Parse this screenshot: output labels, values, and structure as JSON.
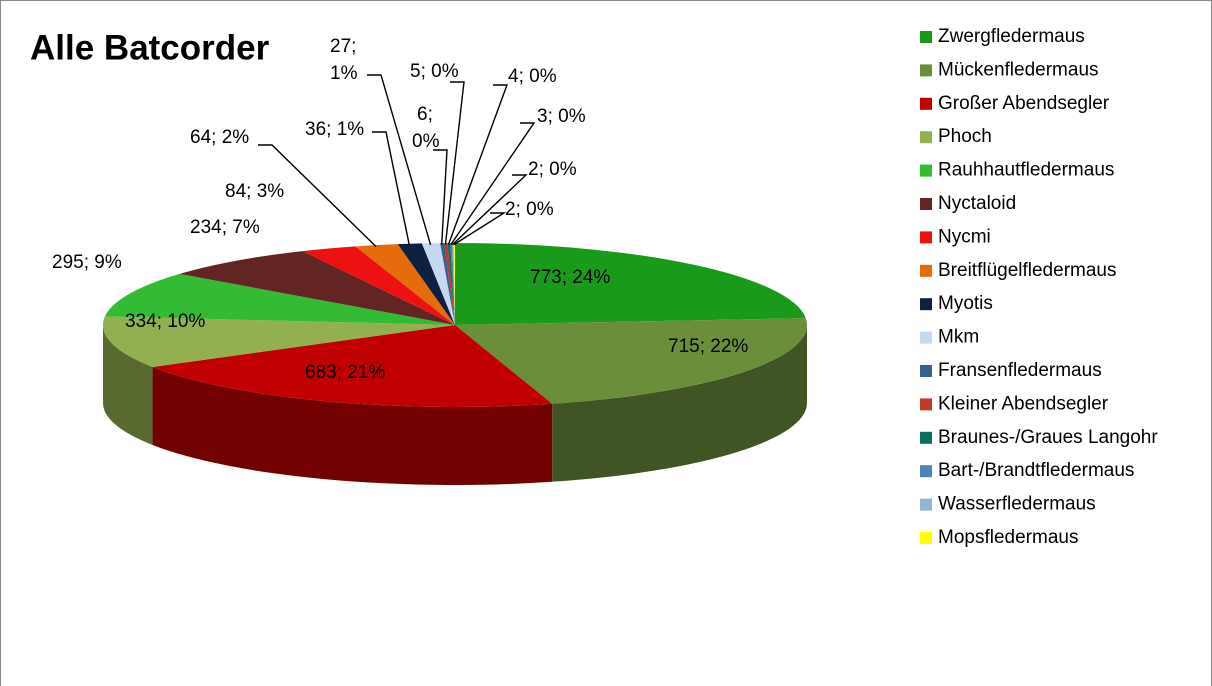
{
  "chart_data": {
    "type": "pie3d",
    "title": "Alle Batcorder",
    "categories": [
      "Zwergfledermaus",
      "Mückenfledermaus",
      "Großer Abendsegler",
      "Phoch",
      "Rauhhautfledermaus",
      "Nyctaloid",
      "Nycmi",
      "Breitflügelfledermaus",
      "Myotis",
      "Mkm",
      "Fransenfledermaus",
      "Kleiner Abendsegler",
      "Braunes-/Graues Langohr",
      "Bart-/Brandtfledermaus",
      "Wasserfledermaus",
      "Mopsfledermaus"
    ],
    "values": [
      773,
      715,
      683,
      334,
      295,
      234,
      84,
      64,
      36,
      27,
      6,
      5,
      4,
      3,
      2,
      2
    ],
    "value_labels": [
      "773; 24%",
      "715; 22%",
      "683; 21%",
      "334; 10%",
      "295; 9%",
      "234; 7%",
      "84; 3%",
      "64; 2%",
      "36; 1%",
      "27; 1%",
      "6; 0%",
      "5; 0%",
      "4; 0%",
      "3; 0%",
      "2; 0%",
      "2; 0%"
    ],
    "colors": [
      "#1a9a1a",
      "#6b8e3a",
      "#c00000",
      "#92b050",
      "#33bb33",
      "#632523",
      "#ee1111",
      "#e46c0a",
      "#0f1f3f",
      "#c6d9f1",
      "#366092",
      "#c0392b",
      "#0b6e5e",
      "#4f81bd",
      "#95b3d7",
      "#ffff00"
    ],
    "legend": "right"
  }
}
